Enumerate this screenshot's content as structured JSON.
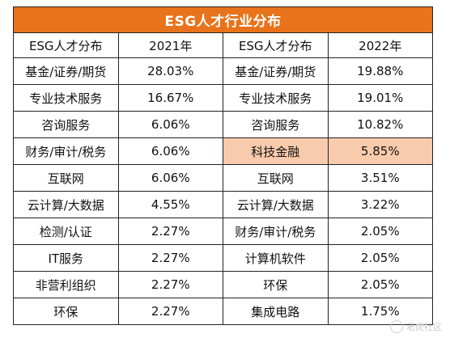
{
  "title": "ESG人才行业分布",
  "headers": [
    "ESG人才分布",
    "2021年",
    "ESG人才分布",
    "2022年"
  ],
  "rows": [
    [
      "基金/证券/期货",
      "28.03%",
      "基金/证券/期货",
      "19.88%"
    ],
    [
      "专业技术服务",
      "16.67%",
      "专业技术服务",
      "19.01%"
    ],
    [
      "咨询服务",
      "6.06%",
      "咨询服务",
      "10.82%"
    ],
    [
      "财务/审计/税务",
      "6.06%",
      "科技金融",
      "5.85%"
    ],
    [
      "互联网",
      "6.06%",
      "互联网",
      "3.51%"
    ],
    [
      "云计算/大数据",
      "4.55%",
      "云计算/大数据",
      "3.22%"
    ],
    [
      "检测/认证",
      "2.27%",
      "财务/审计/税务",
      "2.05%"
    ],
    [
      "IT服务",
      "2.27%",
      "计算机软件",
      "2.05%"
    ],
    [
      "非营利组织",
      "2.27%",
      "环保",
      "2.05%"
    ],
    [
      "环保",
      "2.27%",
      "集成电路",
      "1.75%"
    ]
  ],
  "highlight_color": "#f9cbad",
  "title_color": "#e8731a",
  "watermark": "老虎社区"
}
